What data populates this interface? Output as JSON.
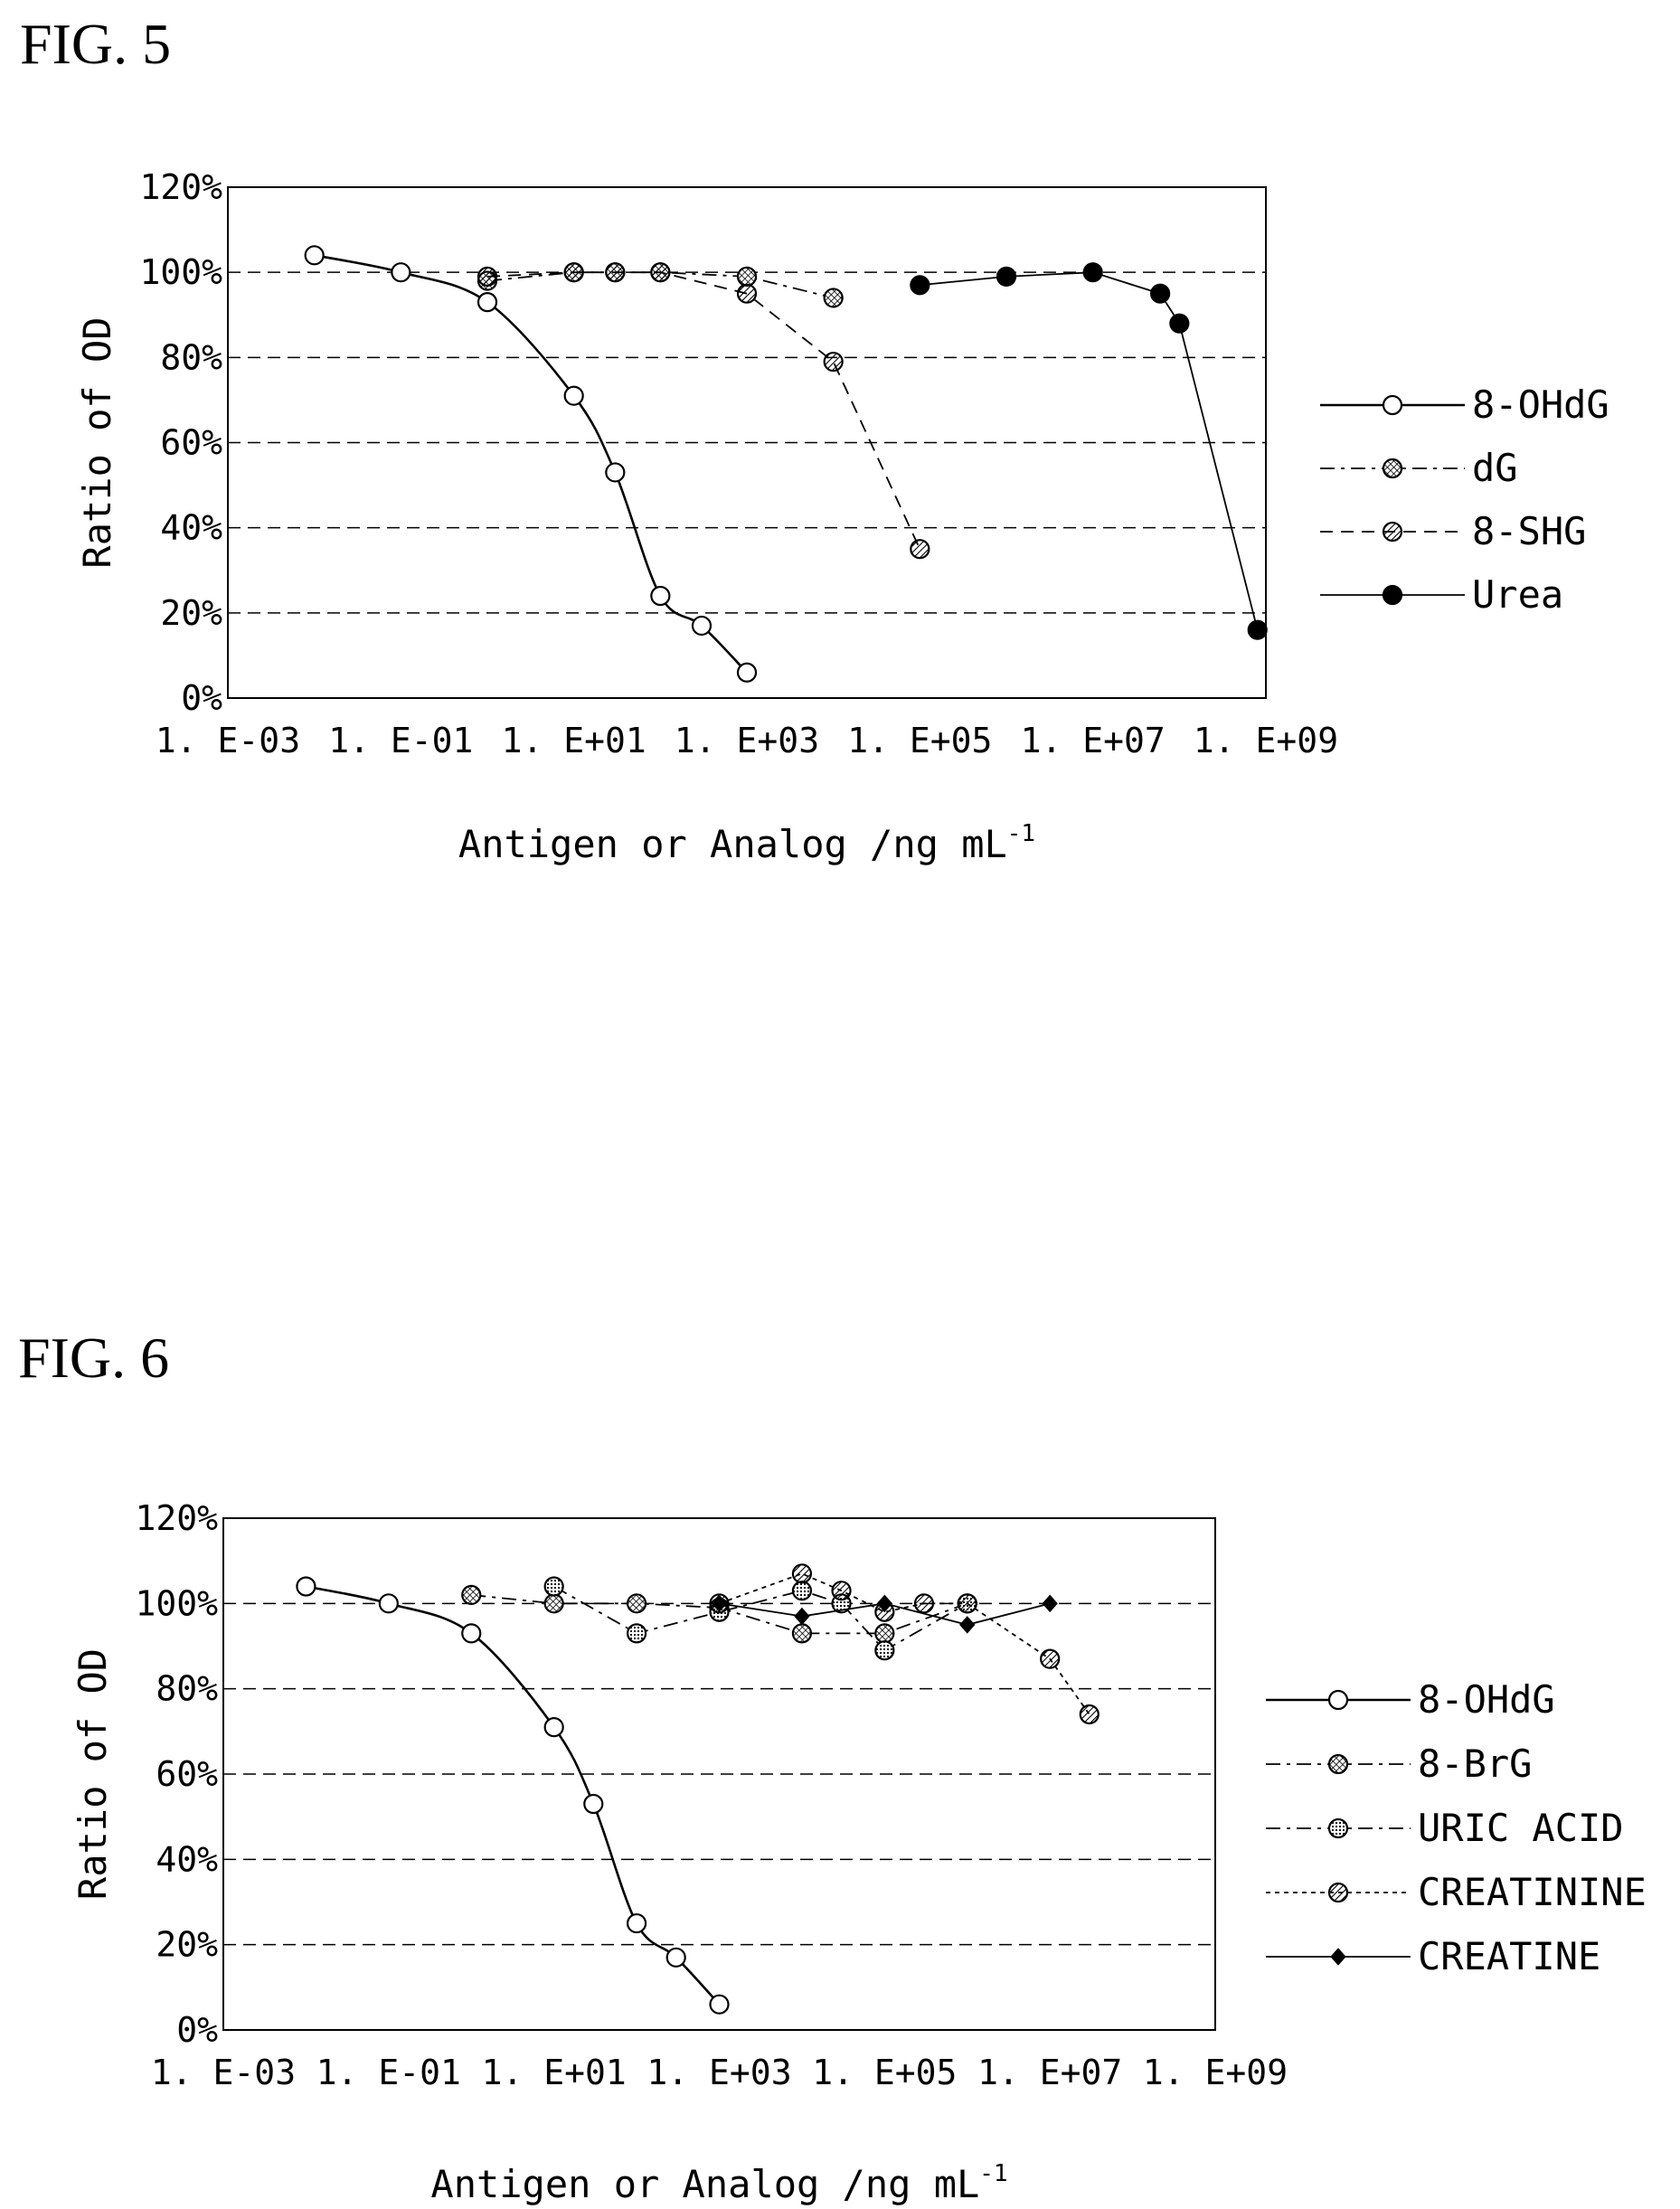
{
  "figures": [
    {
      "title": "FIG. 5"
    },
    {
      "title": "FIG. 6"
    }
  ],
  "chart_data": [
    {
      "type": "line",
      "xscale": "log10",
      "xlim": [
        0.001,
        1000000000
      ],
      "ylim": [
        0,
        120
      ],
      "y_ticks": [
        "0%",
        "20%",
        "40%",
        "60%",
        "80%",
        "100%",
        "120%"
      ],
      "x_ticks": [
        "1. E-03",
        "1. E-01",
        "1. E+01",
        "1. E+03",
        "1. E+05",
        "1. E+07",
        "1. E+09"
      ],
      "xlabel": "Antigen or Analog /ng mL",
      "xlabel_sup": "-1",
      "ylabel": "Ratio of OD",
      "grid": "dashed horizontal",
      "legend_position": "right",
      "series": [
        {
          "name": "8-OHdG",
          "marker": "open-circle",
          "line": "solid",
          "smooth": true,
          "x": [
            0.01,
            0.1,
            1,
            10,
            30,
            100,
            300,
            1000
          ],
          "y": [
            104,
            100,
            93,
            71,
            53,
            24,
            17,
            6
          ]
        },
        {
          "name": "dG",
          "marker": "crosshatch-circle",
          "line": "dash-dot",
          "x": [
            1,
            10,
            30,
            100,
            1000,
            10000
          ],
          "y": [
            98,
            100,
            100,
            100,
            99,
            94
          ]
        },
        {
          "name": "8-SHG",
          "marker": "hatched-circle",
          "line": "dashed",
          "x": [
            1,
            10,
            30,
            100,
            1000,
            10000,
            100000
          ],
          "y": [
            99,
            100,
            100,
            100,
            95,
            79,
            35
          ]
        },
        {
          "name": "Urea",
          "marker": "filled-circle",
          "line": "solid",
          "x": [
            100000,
            1000000,
            10000000,
            60000000,
            100000000,
            800000000
          ],
          "y": [
            97,
            99,
            100,
            95,
            88,
            16
          ]
        }
      ]
    },
    {
      "type": "line",
      "xscale": "log10",
      "xlim": [
        0.001,
        1000000000
      ],
      "ylim": [
        0,
        120
      ],
      "y_ticks": [
        "0%",
        "20%",
        "40%",
        "60%",
        "80%",
        "100%",
        "120%"
      ],
      "x_ticks": [
        "1. E-03",
        "1. E-01",
        "1. E+01",
        "1. E+03",
        "1. E+05",
        "1. E+07",
        "1. E+09"
      ],
      "xlabel": "Antigen or Analog /ng mL",
      "xlabel_sup": "-1",
      "ylabel": "Ratio of OD",
      "grid": "dashed horizontal",
      "legend_position": "right",
      "series": [
        {
          "name": "8-OHdG",
          "marker": "open-circle",
          "line": "solid",
          "smooth": true,
          "x": [
            0.01,
            0.1,
            1,
            10,
            30,
            100,
            300,
            1000
          ],
          "y": [
            104,
            100,
            93,
            71,
            53,
            25,
            17,
            6
          ]
        },
        {
          "name": "8-BrG",
          "marker": "crosshatch-circle",
          "line": "dash-dot",
          "x": [
            1,
            10,
            100,
            1000,
            10000,
            100000,
            1000000
          ],
          "y": [
            102,
            100,
            100,
            99,
            93,
            93,
            100
          ]
        },
        {
          "name": "URIC ACID",
          "marker": "dotted-circle",
          "line": "dash-dot",
          "x": [
            10,
            100,
            1000,
            10000,
            30000,
            100000,
            1000000
          ],
          "y": [
            104,
            93,
            98,
            103,
            100,
            89,
            100
          ]
        },
        {
          "name": "CREATININE",
          "marker": "hatched-circle",
          "line": "dotted",
          "x": [
            1000,
            10000,
            30000,
            100000,
            300000,
            1000000,
            10000000,
            30000000
          ],
          "y": [
            100,
            107,
            103,
            98,
            100,
            100,
            87,
            74
          ]
        },
        {
          "name": "CREATINE",
          "marker": "filled-diamond",
          "line": "solid",
          "x": [
            1000,
            10000,
            100000,
            1000000,
            10000000
          ],
          "y": [
            100,
            97,
            100,
            95,
            100
          ]
        }
      ]
    }
  ]
}
